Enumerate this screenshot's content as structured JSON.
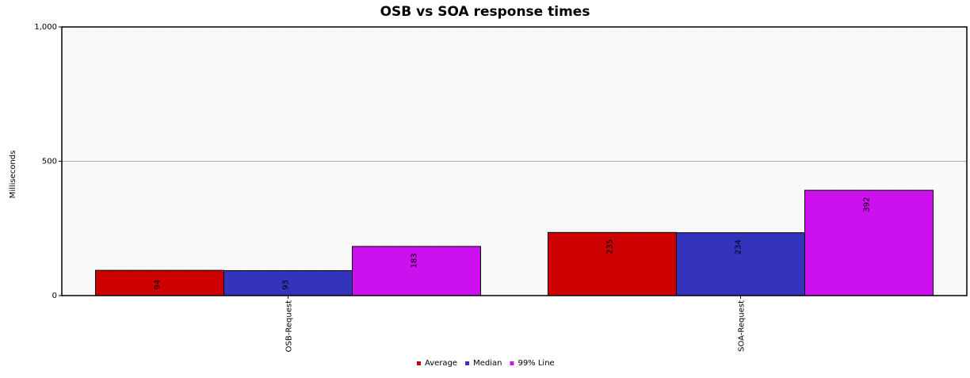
{
  "chart_data": {
    "type": "bar",
    "title": "OSB vs SOA response times",
    "xlabel": "",
    "ylabel": "Milliseconds",
    "ylim": [
      0,
      1000
    ],
    "yticks": [
      {
        "value": 0,
        "label": "0"
      },
      {
        "value": 500,
        "label": "500"
      },
      {
        "value": 1000,
        "label": "1,000"
      }
    ],
    "categories": [
      "OSB-Request",
      "SOA-Request"
    ],
    "series": [
      {
        "name": "Average",
        "color": "#cc0000",
        "values": [
          94,
          235
        ]
      },
      {
        "name": "Median",
        "color": "#3333bb",
        "values": [
          93,
          234
        ]
      },
      {
        "name": "99% Line",
        "color": "#cc11ee",
        "values": [
          183,
          392
        ]
      }
    ],
    "grid": true,
    "legend_position": "bottom"
  }
}
